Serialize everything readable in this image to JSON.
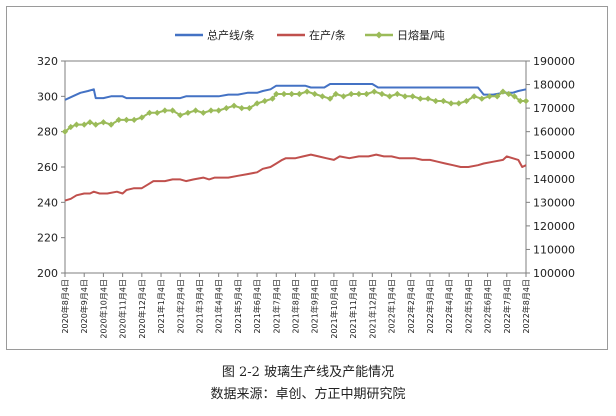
{
  "chart_data": {
    "type": "line",
    "title": "",
    "xlabel": "",
    "ylabel": "",
    "y_left": {
      "lim": [
        200,
        320
      ],
      "ticks": [
        200,
        220,
        240,
        260,
        280,
        300,
        320
      ]
    },
    "y_right": {
      "lim": [
        100000,
        190000
      ],
      "ticks": [
        100000,
        110000,
        120000,
        130000,
        140000,
        150000,
        160000,
        170000,
        180000,
        190000
      ]
    },
    "grid": false,
    "legend_position": "top-center",
    "x_ticks": [
      "2020年8月4日",
      "2020年9月4日",
      "2020年10月4日",
      "2020年11月4日",
      "2020年12月4日",
      "2021年1月4日",
      "2021年2月4日",
      "2021年3月4日",
      "2021年4月4日",
      "2021年5月4日",
      "2021年6月4日",
      "2021年7月4日",
      "2021年8月4日",
      "2021年9月4日",
      "2021年10月4日",
      "2021年11月4日",
      "2021年12月4日",
      "2022年1月4日",
      "2022年2月4日",
      "2022年3月4日",
      "2022年4月4日",
      "2022年5月4日",
      "2022年6月4日",
      "2022年7月4日",
      "2022年8月4日"
    ],
    "series": [
      {
        "name": "总产线/条",
        "axis": "left",
        "color": "#4472c4",
        "values": [
          [
            0,
            298
          ],
          [
            0.4,
            300
          ],
          [
            0.8,
            302
          ],
          [
            1.2,
            303
          ],
          [
            1.5,
            304
          ],
          [
            1.6,
            299
          ],
          [
            2,
            299
          ],
          [
            2.4,
            300
          ],
          [
            3,
            300
          ],
          [
            3.2,
            299
          ],
          [
            4,
            299
          ],
          [
            5,
            299
          ],
          [
            6,
            299
          ],
          [
            6.3,
            300
          ],
          [
            7,
            300
          ],
          [
            8,
            300
          ],
          [
            8.5,
            301
          ],
          [
            9,
            301
          ],
          [
            9.5,
            302
          ],
          [
            10,
            302
          ],
          [
            10.3,
            303
          ],
          [
            10.7,
            304
          ],
          [
            11,
            306
          ],
          [
            12,
            306
          ],
          [
            12.5,
            306
          ],
          [
            12.8,
            305
          ],
          [
            13.5,
            305
          ],
          [
            13.8,
            307
          ],
          [
            14.5,
            307
          ],
          [
            15,
            307
          ],
          [
            15.5,
            307
          ],
          [
            16,
            307
          ],
          [
            16.3,
            305
          ],
          [
            17,
            305
          ],
          [
            18,
            305
          ],
          [
            19,
            305
          ],
          [
            20,
            305
          ],
          [
            21,
            305
          ],
          [
            21.5,
            305
          ],
          [
            21.8,
            301
          ],
          [
            22.3,
            301
          ],
          [
            22.8,
            302
          ],
          [
            23.3,
            302
          ],
          [
            23.6,
            303
          ],
          [
            24,
            304
          ]
        ]
      },
      {
        "name": "在产/条",
        "axis": "left",
        "color": "#c0504d",
        "values": [
          [
            0,
            241
          ],
          [
            0.3,
            242
          ],
          [
            0.6,
            244
          ],
          [
            1,
            245
          ],
          [
            1.3,
            245
          ],
          [
            1.5,
            246
          ],
          [
            1.8,
            245
          ],
          [
            2.2,
            245
          ],
          [
            2.7,
            246
          ],
          [
            3,
            245
          ],
          [
            3.2,
            247
          ],
          [
            3.6,
            248
          ],
          [
            4,
            248
          ],
          [
            4.3,
            250
          ],
          [
            4.6,
            252
          ],
          [
            5.2,
            252
          ],
          [
            5.6,
            253
          ],
          [
            6,
            253
          ],
          [
            6.3,
            252
          ],
          [
            6.7,
            253
          ],
          [
            7.2,
            254
          ],
          [
            7.5,
            253
          ],
          [
            7.8,
            254
          ],
          [
            8.5,
            254
          ],
          [
            9,
            255
          ],
          [
            9.5,
            256
          ],
          [
            10,
            257
          ],
          [
            10.3,
            259
          ],
          [
            10.7,
            260
          ],
          [
            11,
            262
          ],
          [
            11.3,
            264
          ],
          [
            11.5,
            265
          ],
          [
            12,
            265
          ],
          [
            12.4,
            266
          ],
          [
            12.8,
            267
          ],
          [
            13.2,
            266
          ],
          [
            13.6,
            265
          ],
          [
            14,
            264
          ],
          [
            14.3,
            266
          ],
          [
            14.8,
            265
          ],
          [
            15.3,
            266
          ],
          [
            15.8,
            266
          ],
          [
            16.2,
            267
          ],
          [
            16.6,
            266
          ],
          [
            17,
            266
          ],
          [
            17.4,
            265
          ],
          [
            17.8,
            265
          ],
          [
            18.2,
            265
          ],
          [
            18.6,
            264
          ],
          [
            19,
            264
          ],
          [
            19.4,
            263
          ],
          [
            19.8,
            262
          ],
          [
            20.2,
            261
          ],
          [
            20.6,
            260
          ],
          [
            21,
            260
          ],
          [
            21.5,
            261
          ],
          [
            21.8,
            262
          ],
          [
            22.3,
            263
          ],
          [
            22.8,
            264
          ],
          [
            23,
            266
          ],
          [
            23.3,
            265
          ],
          [
            23.6,
            264
          ],
          [
            23.8,
            260
          ],
          [
            24,
            261
          ]
        ]
      },
      {
        "name": "日熔量/吨",
        "axis": "right",
        "color": "#9bbb59",
        "values": [
          [
            0,
            160000
          ],
          [
            0.3,
            162000
          ],
          [
            0.6,
            163000
          ],
          [
            1,
            163000
          ],
          [
            1.3,
            164000
          ],
          [
            1.6,
            163000
          ],
          [
            2,
            164000
          ],
          [
            2.4,
            163000
          ],
          [
            2.8,
            165000
          ],
          [
            3.2,
            165000
          ],
          [
            3.6,
            165000
          ],
          [
            4,
            166000
          ],
          [
            4.4,
            168000
          ],
          [
            4.8,
            168000
          ],
          [
            5.2,
            169000
          ],
          [
            5.6,
            169000
          ],
          [
            6,
            167000
          ],
          [
            6.4,
            168000
          ],
          [
            6.8,
            169000
          ],
          [
            7.2,
            168000
          ],
          [
            7.6,
            169000
          ],
          [
            8,
            169000
          ],
          [
            8.4,
            170000
          ],
          [
            8.8,
            171000
          ],
          [
            9.2,
            170000
          ],
          [
            9.6,
            170000
          ],
          [
            10,
            172000
          ],
          [
            10.4,
            173000
          ],
          [
            10.8,
            174000
          ],
          [
            11,
            176000
          ],
          [
            11.4,
            176000
          ],
          [
            11.8,
            176000
          ],
          [
            12.2,
            176000
          ],
          [
            12.6,
            177000
          ],
          [
            13,
            176000
          ],
          [
            13.4,
            175000
          ],
          [
            13.8,
            174000
          ],
          [
            14.1,
            176000
          ],
          [
            14.5,
            175000
          ],
          [
            14.9,
            176000
          ],
          [
            15.3,
            176000
          ],
          [
            15.7,
            176000
          ],
          [
            16.1,
            177000
          ],
          [
            16.5,
            176000
          ],
          [
            16.9,
            175000
          ],
          [
            17.3,
            176000
          ],
          [
            17.7,
            175000
          ],
          [
            18.1,
            175000
          ],
          [
            18.5,
            174000
          ],
          [
            18.9,
            174000
          ],
          [
            19.3,
            173000
          ],
          [
            19.7,
            173000
          ],
          [
            20.1,
            172000
          ],
          [
            20.5,
            172000
          ],
          [
            20.9,
            173000
          ],
          [
            21.3,
            175000
          ],
          [
            21.7,
            174000
          ],
          [
            22.1,
            175000
          ],
          [
            22.5,
            175000
          ],
          [
            22.8,
            177000
          ],
          [
            23.1,
            176000
          ],
          [
            23.4,
            175000
          ],
          [
            23.7,
            173000
          ],
          [
            24,
            173000
          ]
        ]
      }
    ]
  },
  "captions": {
    "figure_title": "图 2-2  玻璃生产线及产能情况",
    "source": "数据来源：卓创、方正中期研究院"
  }
}
